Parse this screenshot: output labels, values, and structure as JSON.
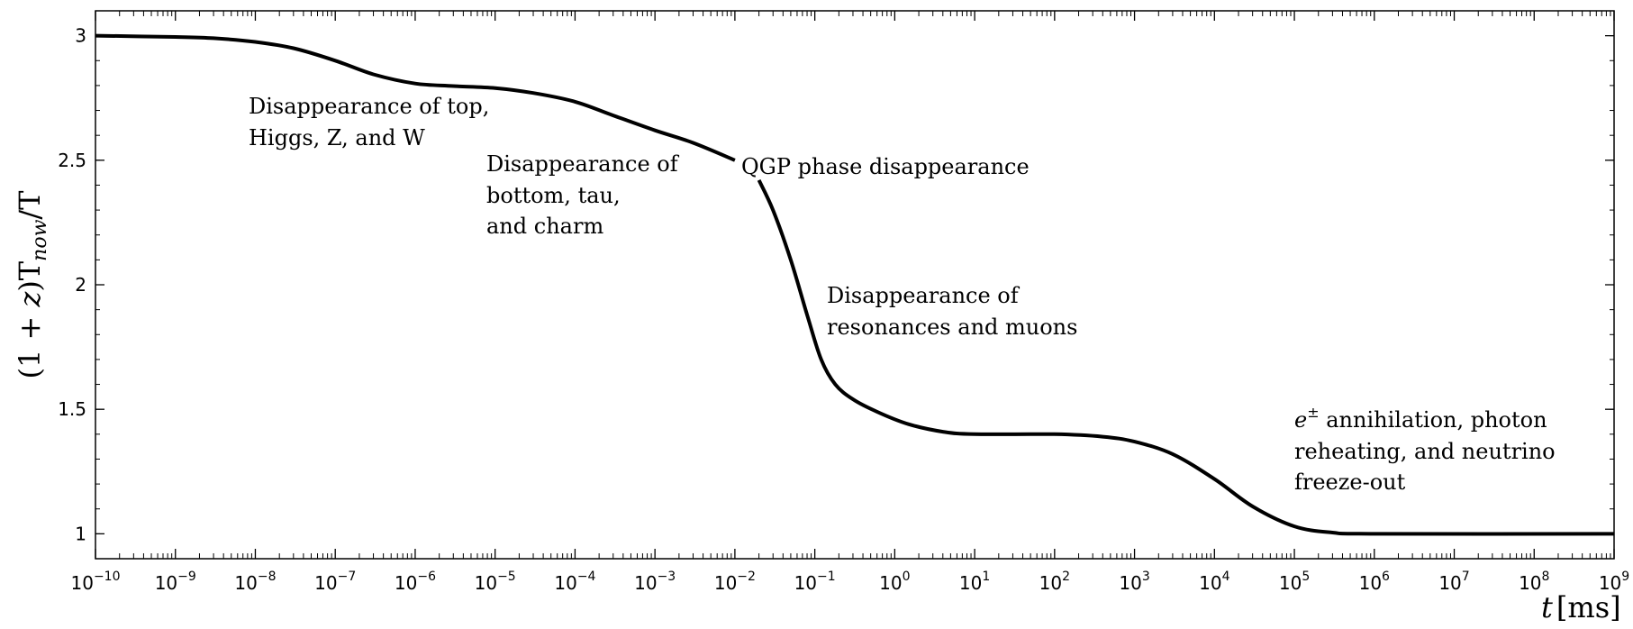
{
  "chart_data": {
    "type": "line",
    "xscale": "log",
    "xlim": [
      1e-10,
      1000000000.0
    ],
    "ylim": [
      0.9,
      3.1
    ],
    "grid": false,
    "legend": "none",
    "xlabel": {
      "main": "t",
      "unit": "[ms]"
    },
    "ylabel": {
      "prefix": "(1 + ",
      "z": "z",
      "mid": ")T",
      "sub": "now",
      "slash": "/T"
    },
    "xticks": [
      {
        "value": 1e-10,
        "base": "10",
        "exp": "−10"
      },
      {
        "value": 1e-09,
        "base": "10",
        "exp": "−9"
      },
      {
        "value": 1e-08,
        "base": "10",
        "exp": "−8"
      },
      {
        "value": 1e-07,
        "base": "10",
        "exp": "−7"
      },
      {
        "value": 1e-06,
        "base": "10",
        "exp": "−6"
      },
      {
        "value": 1e-05,
        "base": "10",
        "exp": "−5"
      },
      {
        "value": 0.0001,
        "base": "10",
        "exp": "−4"
      },
      {
        "value": 0.001,
        "base": "10",
        "exp": "−3"
      },
      {
        "value": 0.01,
        "base": "10",
        "exp": "−2"
      },
      {
        "value": 0.1,
        "base": "10",
        "exp": "−1"
      },
      {
        "value": 1,
        "base": "10",
        "exp": "0"
      },
      {
        "value": 10,
        "base": "10",
        "exp": "1"
      },
      {
        "value": 100,
        "base": "10",
        "exp": "2"
      },
      {
        "value": 1000,
        "base": "10",
        "exp": "3"
      },
      {
        "value": 10000,
        "base": "10",
        "exp": "4"
      },
      {
        "value": 100000,
        "base": "10",
        "exp": "5"
      },
      {
        "value": 1000000,
        "base": "10",
        "exp": "6"
      },
      {
        "value": 10000000,
        "base": "10",
        "exp": "7"
      },
      {
        "value": 100000000,
        "base": "10",
        "exp": "8"
      },
      {
        "value": 1000000000,
        "base": "10",
        "exp": "9"
      }
    ],
    "yticks": [
      {
        "value": 1,
        "label": "1"
      },
      {
        "value": 1.5,
        "label": "1.5"
      },
      {
        "value": 2,
        "label": "2"
      },
      {
        "value": 2.5,
        "label": "2.5"
      },
      {
        "value": 3,
        "label": "3"
      }
    ],
    "series": [
      {
        "color": "#000000",
        "segments": [
          [
            [
              1e-10,
              3.0
            ],
            [
              1e-09,
              2.995
            ],
            [
              3e-09,
              2.99
            ],
            [
              1e-08,
              2.975
            ],
            [
              3e-08,
              2.95
            ],
            [
              1e-07,
              2.9
            ],
            [
              3e-07,
              2.845
            ],
            [
              1e-06,
              2.808
            ],
            [
              3e-06,
              2.798
            ],
            [
              1e-05,
              2.79
            ],
            [
              3e-05,
              2.77
            ],
            [
              0.0001,
              2.735
            ],
            [
              0.0003,
              2.68
            ],
            [
              0.001,
              2.62
            ],
            [
              0.003,
              2.57
            ],
            [
              0.01,
              2.5
            ]
          ],
          [
            [
              0.02,
              2.42
            ],
            [
              0.03,
              2.3
            ],
            [
              0.05,
              2.1
            ],
            [
              0.08,
              1.88
            ],
            [
              0.12,
              1.7
            ],
            [
              0.18,
              1.6
            ],
            [
              0.3,
              1.54
            ],
            [
              0.6,
              1.49
            ],
            [
              1.5,
              1.44
            ],
            [
              4,
              1.41
            ],
            [
              10,
              1.4
            ],
            [
              100,
              1.4
            ],
            [
              400,
              1.39
            ],
            [
              1000,
              1.37
            ],
            [
              3000,
              1.32
            ],
            [
              10000,
              1.22
            ],
            [
              30000,
              1.11
            ],
            [
              100000,
              1.03
            ],
            [
              300000,
              1.005
            ],
            [
              1000000.0,
              1.0
            ],
            [
              1000000000.0,
              1.0
            ]
          ]
        ]
      }
    ],
    "annotations": [
      {
        "id": "top-higgs",
        "lines": [
          "Disappearance of top,",
          "Higgs, Z, and W"
        ]
      },
      {
        "id": "bottom-tau-charm",
        "lines": [
          "Disappearance of",
          "bottom, tau,",
          "and charm"
        ]
      },
      {
        "id": "qgp",
        "lines": [
          "QGP phase disappearance"
        ]
      },
      {
        "id": "resonances-muons",
        "lines": [
          "Disappearance of",
          "resonances and muons"
        ]
      },
      {
        "id": "e-annihilation",
        "first_symbol": "e",
        "first_sup": "±",
        "first_rest": " annihilation, photon",
        "lines": [
          "reheating, and neutrino",
          "freeze-out"
        ]
      }
    ]
  }
}
